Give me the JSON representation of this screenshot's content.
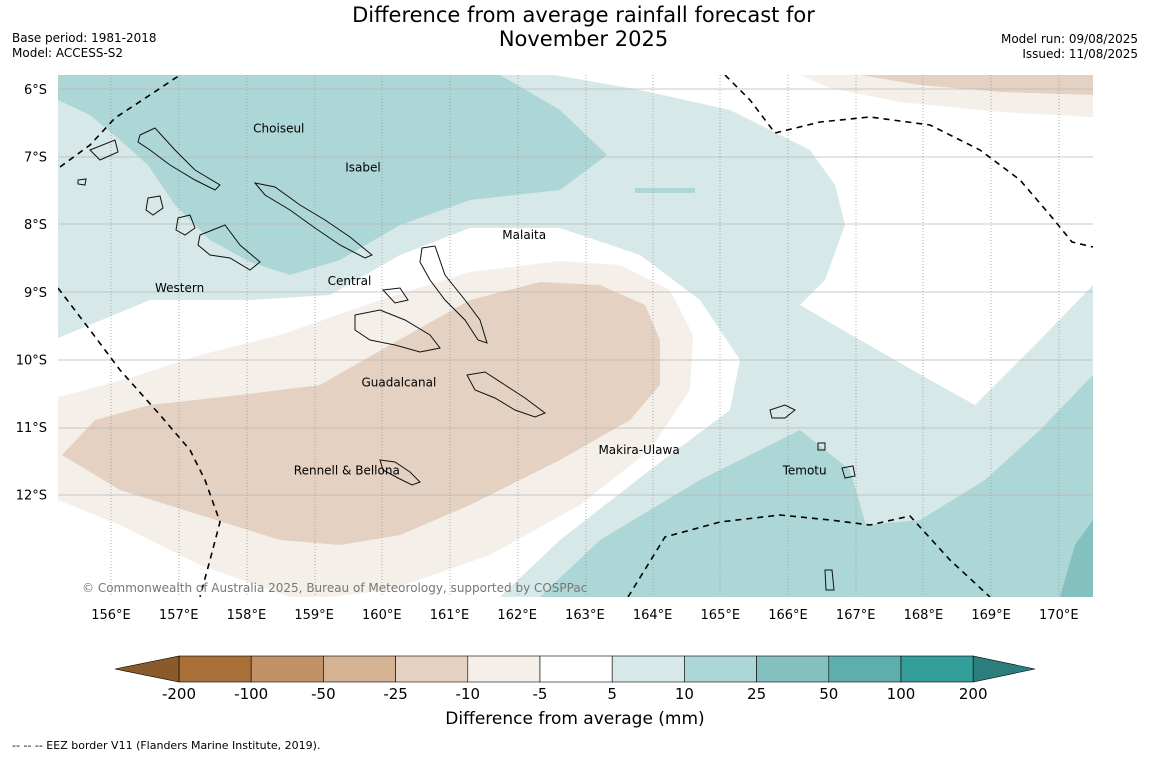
{
  "title_line1": "Difference from average rainfall forecast for",
  "title_line2": "November 2025",
  "meta": {
    "base_period": "Base period: 1981-2018",
    "model": "Model: ACCESS-S2",
    "model_run": "Model run: 09/08/2025",
    "issued": "Issued: 11/08/2025"
  },
  "axes": {
    "lon_labels": [
      "156°E",
      "157°E",
      "158°E",
      "159°E",
      "160°E",
      "161°E",
      "162°E",
      "163°E",
      "164°E",
      "165°E",
      "166°E",
      "167°E",
      "168°E",
      "169°E",
      "170°E"
    ],
    "lat_labels": [
      "6°S",
      "7°S",
      "8°S",
      "9°S",
      "10°S",
      "11°S",
      "12°S"
    ]
  },
  "place_labels": [
    {
      "name": "Choiseul",
      "lon": 158.1,
      "lat": -6.64
    },
    {
      "name": "Isabel",
      "lon": 159.46,
      "lat": -7.22
    },
    {
      "name": "Malaita",
      "lon": 161.78,
      "lat": -8.22
    },
    {
      "name": "Central",
      "lon": 159.2,
      "lat": -8.9
    },
    {
      "name": "Western",
      "lon": 156.65,
      "lat": -9.0
    },
    {
      "name": "Guadalcanal",
      "lon": 159.7,
      "lat": -10.4
    },
    {
      "name": "Makira-Ulawa",
      "lon": 163.2,
      "lat": -11.4
    },
    {
      "name": "Temotu",
      "lon": 165.92,
      "lat": -11.7
    },
    {
      "name": "Rennell & Bellona",
      "lon": 158.7,
      "lat": -11.7
    }
  ],
  "copyright": "© Commonwealth of Australia 2025, Bureau of Meteorology, supported by COSPPac",
  "colorbar": {
    "title": "Difference from average (mm)",
    "tick_labels": [
      "-200",
      "-100",
      "-50",
      "-25",
      "-10",
      "-5",
      "5",
      "10",
      "25",
      "50",
      "100",
      "200"
    ],
    "colors": [
      "#a87038",
      "#c19266",
      "#d5b291",
      "#e4d1c1",
      "#f5efea",
      "#ffffff",
      "#d6e8e8",
      "#add6d6",
      "#84c0c0",
      "#5eaeae",
      "#339e9a"
    ],
    "extend_low_color": "#8a5a2b",
    "extend_high_color": "#2a7f7d"
  },
  "footnote": "--  --  -- EEZ border V11 (Flanders Marine Institute, 2019)."
}
